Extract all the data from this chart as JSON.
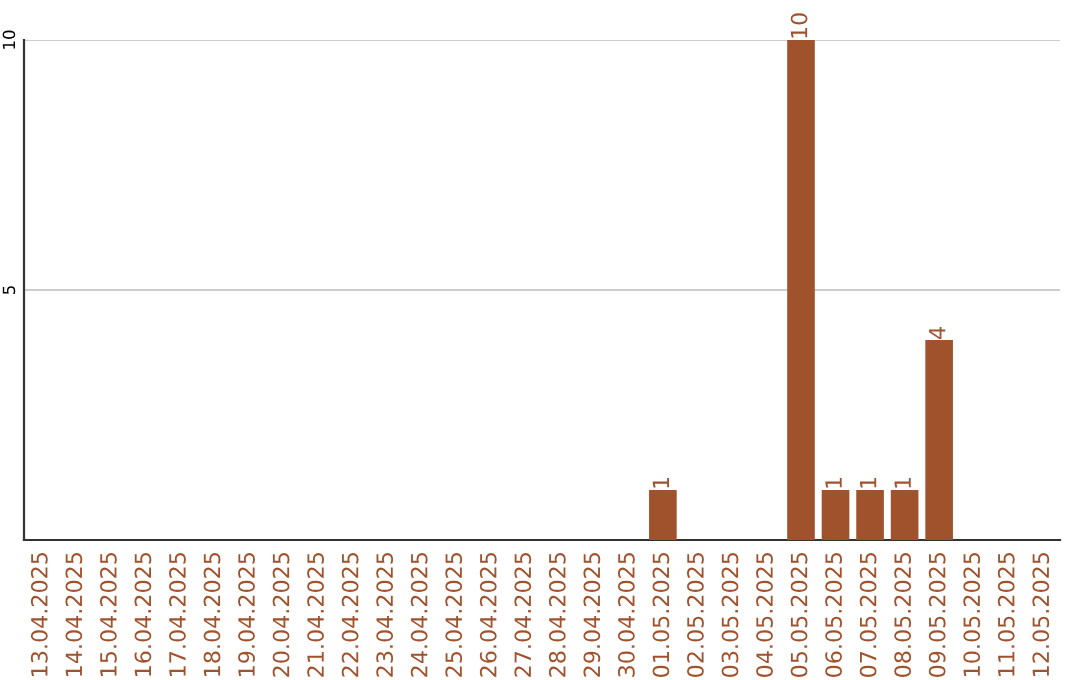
{
  "chart_data": {
    "type": "bar",
    "categories": [
      "13.04.2025",
      "14.04.2025",
      "15.04.2025",
      "16.04.2025",
      "17.04.2025",
      "18.04.2025",
      "19.04.2025",
      "20.04.2025",
      "21.04.2025",
      "22.04.2025",
      "23.04.2025",
      "24.04.2025",
      "25.04.2025",
      "26.04.2025",
      "27.04.2025",
      "28.04.2025",
      "29.04.2025",
      "30.04.2025",
      "01.05.2025",
      "02.05.2025",
      "03.05.2025",
      "04.05.2025",
      "05.05.2025",
      "06.05.2025",
      "07.05.2025",
      "08.05.2025",
      "09.05.2025",
      "10.05.2025",
      "11.05.2025",
      "12.05.2025"
    ],
    "values": [
      0,
      0,
      0,
      0,
      0,
      0,
      0,
      0,
      0,
      0,
      0,
      0,
      0,
      0,
      0,
      0,
      0,
      0,
      1,
      0,
      0,
      0,
      10,
      1,
      1,
      1,
      4,
      0,
      0,
      0
    ],
    "value_labels": [
      null,
      null,
      null,
      null,
      null,
      null,
      null,
      null,
      null,
      null,
      null,
      null,
      null,
      null,
      null,
      null,
      null,
      null,
      "1",
      null,
      null,
      null,
      "10",
      "1",
      "1",
      "1",
      "4",
      null,
      null,
      null
    ],
    "color": "#a0522d",
    "ylim": [
      0,
      10
    ],
    "yticks": [
      5,
      10
    ],
    "grid": "y",
    "legend": false
  }
}
